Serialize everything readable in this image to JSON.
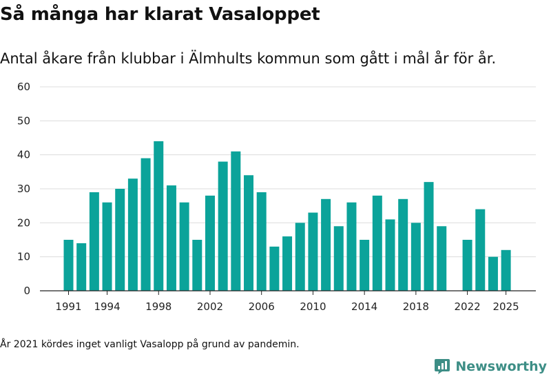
{
  "header": {
    "title": "Så många har klarat Vasaloppet",
    "subtitle": "Antal åkare från klubbar i Älmhults kommun som gått i mål år för år."
  },
  "footer": {
    "note": "År 2021 kördes inget vanligt Vasalopp på grund av pandemin.",
    "brand": "Newsworthy"
  },
  "colors": {
    "bar": "#0ba39a",
    "grid": "#dcdcdc",
    "axis": "#222222",
    "brand": "#3d8e86"
  },
  "chart_data": {
    "type": "bar",
    "title": "Så många har klarat Vasaloppet",
    "subtitle": "Antal åkare från klubbar i Älmhults kommun som gått i mål år för år.",
    "xlabel": "",
    "ylabel": "",
    "ylim": [
      0,
      60
    ],
    "yticks": [
      0,
      10,
      20,
      30,
      40,
      50,
      60
    ],
    "xticks": [
      1991,
      1994,
      1998,
      2002,
      2006,
      2010,
      2014,
      2018,
      2022,
      2025
    ],
    "grid": true,
    "categories": [
      1991,
      1992,
      1993,
      1994,
      1995,
      1996,
      1997,
      1998,
      1999,
      2000,
      2001,
      2002,
      2003,
      2004,
      2005,
      2006,
      2007,
      2008,
      2009,
      2010,
      2011,
      2012,
      2013,
      2014,
      2015,
      2016,
      2017,
      2018,
      2019,
      2020,
      2021,
      2022,
      2023,
      2024,
      2025
    ],
    "values": [
      15,
      14,
      29,
      26,
      30,
      33,
      39,
      44,
      31,
      26,
      15,
      28,
      38,
      41,
      34,
      29,
      13,
      16,
      20,
      23,
      27,
      19,
      26,
      15,
      28,
      21,
      27,
      20,
      32,
      19,
      null,
      15,
      24,
      10,
      12
    ]
  }
}
